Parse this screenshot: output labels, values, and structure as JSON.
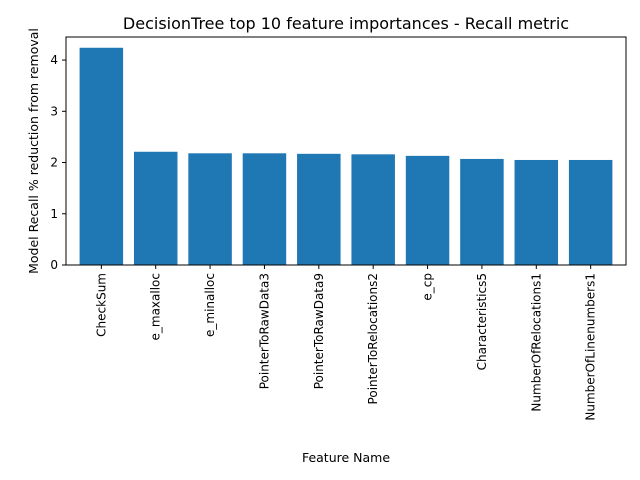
{
  "chart_data": {
    "type": "bar",
    "title": "DecisionTree top 10 feature importances - Recall metric",
    "xlabel": "Feature Name",
    "ylabel": "Model Recall % reduction from removal",
    "categories": [
      "CheckSum",
      "e_maxalloc",
      "e_minalloc",
      "PointerToRawData3",
      "PointerToRawData9",
      "PointerToRelocations2",
      "e_cp",
      "Characteristics5",
      "NumberOfRelocations1",
      "NumberOfLinenumbers1"
    ],
    "values": [
      4.24,
      2.21,
      2.18,
      2.18,
      2.17,
      2.16,
      2.13,
      2.07,
      2.05,
      2.05
    ],
    "ylim": [
      0,
      4.45
    ],
    "yticks": [
      0,
      1,
      2,
      3,
      4
    ],
    "grid": false,
    "bar_color": "#1f77b4"
  }
}
